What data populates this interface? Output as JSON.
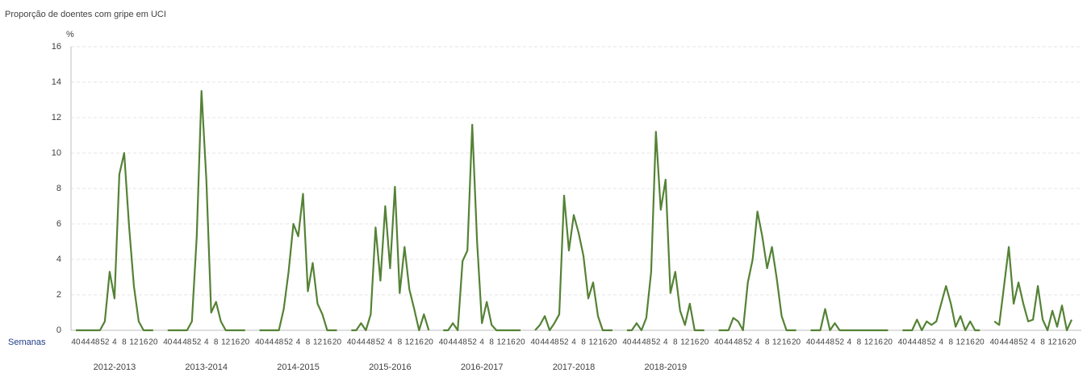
{
  "chart_data": {
    "type": "line",
    "title": "Proporção de doentes com gripe em UCI",
    "y_unit": "%",
    "x_label": "Semanas",
    "categories": [
      "40",
      null,
      "44",
      null,
      "48",
      null,
      "52",
      null,
      "4",
      null,
      "8",
      null,
      "12",
      null,
      "16",
      null,
      "20"
    ],
    "ylim": [
      0,
      16
    ],
    "yticks": [
      0,
      2,
      4,
      6,
      8,
      10,
      12,
      14,
      16
    ],
    "grid": true,
    "series": [
      {
        "name": "2012-2013",
        "color": "#548235",
        "values": [
          0,
          0,
          0,
          0,
          0,
          0,
          0.5,
          3.3,
          1.8,
          8.8,
          10,
          5.9,
          2.5,
          0.5,
          0,
          0,
          0
        ]
      },
      {
        "name": "2013-2014",
        "color": "#548235",
        "values": [
          0,
          0,
          0,
          0,
          0,
          0.5,
          5.3,
          13.5,
          8.5,
          1.0,
          1.6,
          0.5,
          0,
          0,
          0,
          0,
          0
        ]
      },
      {
        "name": "2014-2015",
        "color": "#548235",
        "values": [
          0,
          0,
          0,
          0,
          0,
          1.2,
          3.3,
          6.0,
          5.3,
          7.7,
          2.2,
          3.8,
          1.5,
          0.9,
          0,
          0,
          0
        ]
      },
      {
        "name": "2015-2016",
        "color": "#548235",
        "values": [
          0,
          0,
          0.4,
          0,
          0.9,
          5.8,
          2.8,
          7.0,
          3.5,
          8.1,
          2.1,
          4.7,
          2.3,
          1.2,
          0,
          0.9,
          0
        ]
      },
      {
        "name": "2016-2017",
        "color": "#548235",
        "values": [
          0,
          0,
          0.4,
          0,
          3.9,
          4.5,
          11.6,
          5.0,
          0.4,
          1.6,
          0.3,
          0,
          0,
          0,
          0,
          0,
          0
        ]
      },
      {
        "name": "2017-2018",
        "color": "#548235",
        "values": [
          0,
          0.3,
          0.8,
          0,
          0.4,
          0.9,
          7.6,
          4.5,
          6.5,
          5.5,
          4.2,
          1.8,
          2.7,
          0.8,
          0,
          0,
          0
        ]
      },
      {
        "name": "2018-2019",
        "color": "#548235",
        "values": [
          0,
          0,
          0.4,
          0,
          0.7,
          3.3,
          11.2,
          6.8,
          8.5,
          2.1,
          3.3,
          1.1,
          0.3,
          1.5,
          0,
          0,
          0
        ]
      },
      {
        "color": "#548235",
        "values": [
          0,
          0,
          0,
          0.7,
          0.5,
          0,
          2.7,
          4.0,
          6.7,
          5.3,
          3.5,
          4.7,
          2.9,
          0.8,
          0,
          0,
          0
        ]
      },
      {
        "color": "#548235",
        "values": [
          0,
          0,
          0,
          1.2,
          0,
          0.4,
          0,
          0,
          0,
          0,
          0,
          0,
          0,
          0,
          0,
          0,
          0
        ]
      },
      {
        "color": "#548235",
        "values": [
          0,
          0,
          0,
          0.6,
          0,
          0.5,
          0.3,
          0.5,
          1.5,
          2.5,
          1.5,
          0.2,
          0.8,
          0,
          0.5,
          0,
          0
        ]
      },
      {
        "color": "#548235",
        "values": [
          0.5,
          0.3,
          2.5,
          4.7,
          1.5,
          2.7,
          1.5,
          0.5,
          0.6,
          2.5,
          0.6,
          0,
          1.1,
          0.2,
          1.4,
          0,
          0.6
        ]
      }
    ]
  }
}
